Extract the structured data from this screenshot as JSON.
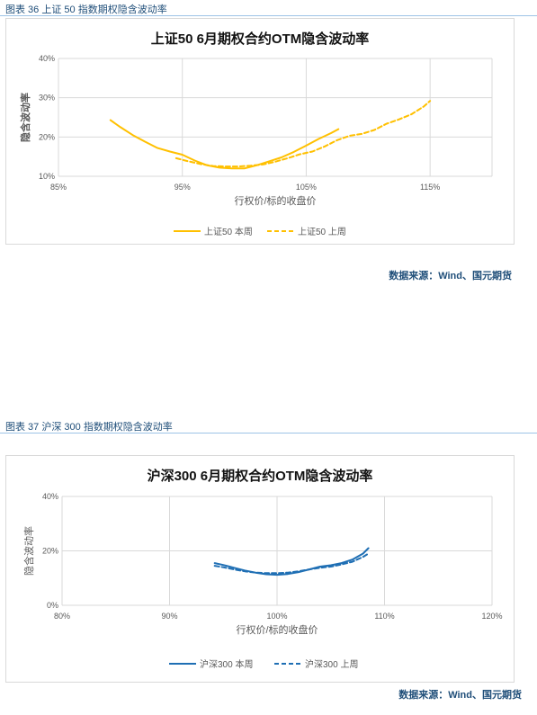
{
  "figure1": {
    "caption": "图表 36  上证 50 指数期权隐含波动率",
    "source": "数据来源：Wind、国元期货",
    "chart_data": {
      "type": "line",
      "title": "上证50 6月期权合约OTM隐含波动率",
      "xlabel": "行权价/标的收盘价",
      "ylabel": "隐含波动率",
      "ylabel_bold": true,
      "xlim": [
        0.85,
        1.2
      ],
      "ylim": [
        0.1,
        0.4
      ],
      "xticks": [
        0.85,
        0.95,
        1.05,
        1.15
      ],
      "xtick_labels": [
        "85%",
        "95%",
        "105%",
        "115%"
      ],
      "yticks": [
        0.1,
        0.2,
        0.3,
        0.4
      ],
      "ytick_labels": [
        "10%",
        "20%",
        "30%",
        "40%"
      ],
      "grid": true,
      "legend_position": "bottom",
      "series": [
        {
          "name": "上证50 本周",
          "style": "solid",
          "color": "#FFC000",
          "x": [
            0.892,
            0.9,
            0.91,
            0.92,
            0.93,
            0.94,
            0.95,
            0.96,
            0.97,
            0.98,
            0.99,
            1.0,
            1.01,
            1.02,
            1.03,
            1.04,
            1.05,
            1.06,
            1.07,
            1.076
          ],
          "y": [
            0.243,
            0.225,
            0.205,
            0.188,
            0.172,
            0.163,
            0.155,
            0.14,
            0.128,
            0.122,
            0.12,
            0.12,
            0.128,
            0.138,
            0.148,
            0.162,
            0.178,
            0.195,
            0.21,
            0.22
          ]
        },
        {
          "name": "上证50 上周",
          "style": "dashed",
          "color": "#FFC000",
          "x": [
            0.945,
            0.955,
            0.965,
            0.975,
            0.985,
            0.995,
            1.005,
            1.015,
            1.025,
            1.035,
            1.045,
            1.055,
            1.065,
            1.075,
            1.085,
            1.095,
            1.105,
            1.115,
            1.125,
            1.135,
            1.145,
            1.15
          ],
          "y": [
            0.146,
            0.138,
            0.131,
            0.126,
            0.125,
            0.125,
            0.127,
            0.13,
            0.137,
            0.146,
            0.156,
            0.163,
            0.176,
            0.192,
            0.203,
            0.208,
            0.218,
            0.234,
            0.245,
            0.258,
            0.278,
            0.292
          ]
        }
      ]
    }
  },
  "figure2": {
    "caption": "图表 37  沪深 300 指数期权隐含波动率",
    "source": "数据来源：Wind、国元期货",
    "chart_data": {
      "type": "line",
      "title": "沪深300 6月期权合约OTM隐含波动率",
      "xlabel": "行权价/标的收盘价",
      "ylabel": "隐含波动率",
      "ylabel_bold": false,
      "xlim": [
        0.8,
        1.2
      ],
      "ylim": [
        0,
        0.4
      ],
      "xticks": [
        0.8,
        0.9,
        1.0,
        1.1,
        1.2
      ],
      "xtick_labels": [
        "80%",
        "90%",
        "100%",
        "110%",
        "120%"
      ],
      "yticks": [
        0,
        0.2,
        0.4
      ],
      "ytick_labels": [
        "0%",
        "20%",
        "40%"
      ],
      "grid": true,
      "legend_position": "bottom",
      "series": [
        {
          "name": "沪深300 本周",
          "style": "solid",
          "color": "#1F6FB4",
          "x": [
            0.942,
            0.95,
            0.96,
            0.97,
            0.98,
            0.99,
            1.0,
            1.01,
            1.02,
            1.03,
            1.04,
            1.05,
            1.06,
            1.07,
            1.08,
            1.085
          ],
          "y": [
            0.155,
            0.148,
            0.138,
            0.128,
            0.12,
            0.114,
            0.112,
            0.115,
            0.122,
            0.132,
            0.142,
            0.147,
            0.155,
            0.168,
            0.19,
            0.21
          ]
        },
        {
          "name": "沪深300 上周",
          "style": "dashed",
          "color": "#1F6FB4",
          "x": [
            0.942,
            0.95,
            0.96,
            0.97,
            0.98,
            0.99,
            1.0,
            1.01,
            1.02,
            1.03,
            1.04,
            1.05,
            1.06,
            1.07,
            1.08,
            1.085
          ],
          "y": [
            0.145,
            0.14,
            0.132,
            0.125,
            0.12,
            0.118,
            0.118,
            0.12,
            0.125,
            0.132,
            0.138,
            0.142,
            0.15,
            0.16,
            0.178,
            0.19
          ]
        }
      ]
    }
  }
}
